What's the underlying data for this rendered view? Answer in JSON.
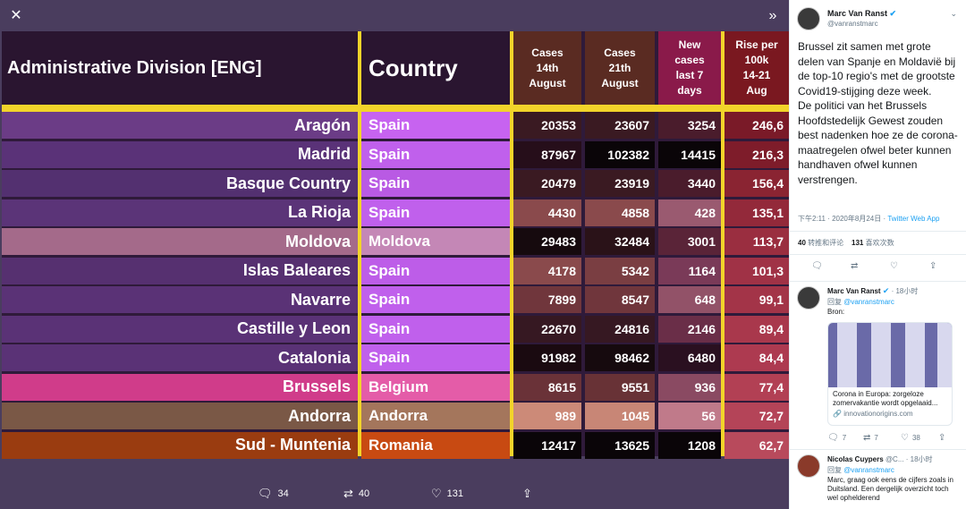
{
  "viewer": {
    "close_icon": "close-icon",
    "expand_icon": "double-chevron-right-icon",
    "headers": {
      "admin": "Administrative Division [ENG]",
      "country": "Country",
      "cases14": [
        "Cases",
        "14th",
        "August"
      ],
      "cases21": [
        "Cases",
        "21th",
        "August"
      ],
      "new7": [
        "New",
        "cases",
        "last 7",
        "days"
      ],
      "rise": [
        "Rise per",
        "100k",
        "14-21",
        "Aug"
      ]
    },
    "rows": [
      {
        "admin": "Aragón",
        "country": "Spain",
        "c14": "20353",
        "c21": "23607",
        "new7": "3254",
        "rise": "246,6",
        "admin_bg": "#6b3c86",
        "country_bg": "#c763f0",
        "c14_bg": "#3a1a22",
        "c21_bg": "#3a1a22",
        "new_bg": "#4a1c2c",
        "rise_bg": "#7a1a28"
      },
      {
        "admin": "Madrid",
        "country": "Spain",
        "c14": "87967",
        "c21": "102382",
        "new7": "14415",
        "rise": "216,3",
        "admin_bg": "#5a3278",
        "country_bg": "#c060ec",
        "c14_bg": "#260e1a",
        "c21_bg": "#0a0508",
        "new_bg": "#0a0508",
        "rise_bg": "#7e1c2a"
      },
      {
        "admin": "Basque Country",
        "country": "Spain",
        "c14": "20479",
        "c21": "23919",
        "new7": "3440",
        "rise": "156,4",
        "admin_bg": "#533070",
        "country_bg": "#b95ae4",
        "c14_bg": "#3a1a22",
        "c21_bg": "#3a1a22",
        "new_bg": "#4a1c2c",
        "rise_bg": "#8a2432"
      },
      {
        "admin": "La Rioja",
        "country": "Spain",
        "c14": "4430",
        "c21": "4858",
        "new7": "428",
        "rise": "135,1",
        "admin_bg": "#5b3478",
        "country_bg": "#c060ec",
        "c14_bg": "#8a4a4c",
        "c21_bg": "#8a4a4c",
        "new_bg": "#9a5a70",
        "rise_bg": "#93293a"
      },
      {
        "admin": "Moldova",
        "country": "Moldova",
        "c14": "29483",
        "c21": "32484",
        "new7": "3001",
        "rise": "113,7",
        "admin_bg": "#a46a8a",
        "country_bg": "#c487b6",
        "c14_bg": "#160a0e",
        "c21_bg": "#2a1218",
        "new_bg": "#5a2438",
        "rise_bg": "#9a2e40"
      },
      {
        "admin": "Islas Baleares",
        "country": "Spain",
        "c14": "4178",
        "c21": "5342",
        "new7": "1164",
        "rise": "101,3",
        "admin_bg": "#563070",
        "country_bg": "#bd5de8",
        "c14_bg": "#8a4a4c",
        "c21_bg": "#7a3e42",
        "new_bg": "#7a3a58",
        "rise_bg": "#a03246"
      },
      {
        "admin": "Navarre",
        "country": "Spain",
        "c14": "7899",
        "c21": "8547",
        "new7": "648",
        "rise": "99,1",
        "admin_bg": "#5a3276",
        "country_bg": "#c060ec",
        "c14_bg": "#70363c",
        "c21_bg": "#70363c",
        "new_bg": "#925268",
        "rise_bg": "#a33448"
      },
      {
        "admin": "Castille y Leon",
        "country": "Spain",
        "c14": "22670",
        "c21": "24816",
        "new7": "2146",
        "rise": "89,4",
        "admin_bg": "#5a3276",
        "country_bg": "#c060ec",
        "c14_bg": "#361822",
        "c21_bg": "#361822",
        "new_bg": "#6a2e48",
        "rise_bg": "#a9384c"
      },
      {
        "admin": "Catalonia",
        "country": "Spain",
        "c14": "91982",
        "c21": "98462",
        "new7": "6480",
        "rise": "84,4",
        "admin_bg": "#5a3276",
        "country_bg": "#c060ec",
        "c14_bg": "#1a0a10",
        "c21_bg": "#160a0e",
        "new_bg": "#2a1020",
        "rise_bg": "#ad3a50"
      },
      {
        "admin": "Brussels",
        "country": "Belgium",
        "c14": "8615",
        "c21": "9551",
        "new7": "936",
        "rise": "77,4",
        "admin_bg": "#d03c8a",
        "country_bg": "#e45ca8",
        "c14_bg": "#6a3238",
        "c21_bg": "#683236",
        "new_bg": "#8a4a62",
        "rise_bg": "#b24054"
      },
      {
        "admin": "Andorra",
        "country": "Andorra",
        "c14": "989",
        "c21": "1045",
        "new7": "56",
        "rise": "72,7",
        "admin_bg": "#7a5846",
        "country_bg": "#a4765c",
        "c14_bg": "#cc8a78",
        "c21_bg": "#c88676",
        "new_bg": "#c07a8a",
        "rise_bg": "#b44458"
      },
      {
        "admin": "Sud - Muntenia",
        "country": "Romania",
        "c14": "12417",
        "c21": "13625",
        "new7": "1208",
        "rise": "62,7",
        "admin_bg": "#9a3c10",
        "country_bg": "#c84a12",
        "c14_bg": "#0a0508",
        "c21_bg": "#0a0508",
        "new_bg": "#0a0508",
        "rise_bg": "#b84a5c"
      }
    ],
    "actions": {
      "reply_count": "34",
      "retweet_count": "40",
      "like_count": "131"
    }
  },
  "side": {
    "main": {
      "author": "Marc Van Ranst",
      "handle": "@vanranstmarc",
      "text": "Brussel zit samen met grote delen van Spanje en Moldavië bij de top-10 regio's met de grootste Covid19-stijging deze week.\nDe politici van het Brussels Hoofdstedelijk Gewest zouden best nadenken hoe ze de corona-maatregelen ofwel beter kunnen handhaven ofwel kunnen verstrengen.",
      "timestamp": "下午2:11 · 2020年8月24日 · ",
      "app": "Twitter Web App",
      "retweets_count": "40",
      "retweets_label": "转推和评论",
      "likes_count": "131",
      "likes_label": "喜欢次数"
    },
    "reply1": {
      "author": "Marc Van Ranst",
      "time": "· 18小时",
      "reply_to_prefix": "回复",
      "reply_to": "@vanranstmarc",
      "text": "Bron:",
      "card_title": "Corona in Europa: zorgeloze zomervakantie wordt opgelaaid...",
      "card_domain": "innovationorigins.com",
      "reply_count": "7",
      "retweet_count": "7",
      "like_count": "38"
    },
    "reply2": {
      "author": "Nicolas Cuypers",
      "handle_short": "@C...",
      "time": "· 18小时",
      "reply_to_prefix": "回复",
      "reply_to": "@vanranstmarc",
      "text": "Marc, graag ook eens de cijfers zoals in Duitsland. Een dergelijk overzicht toch wel ophelderend"
    }
  }
}
